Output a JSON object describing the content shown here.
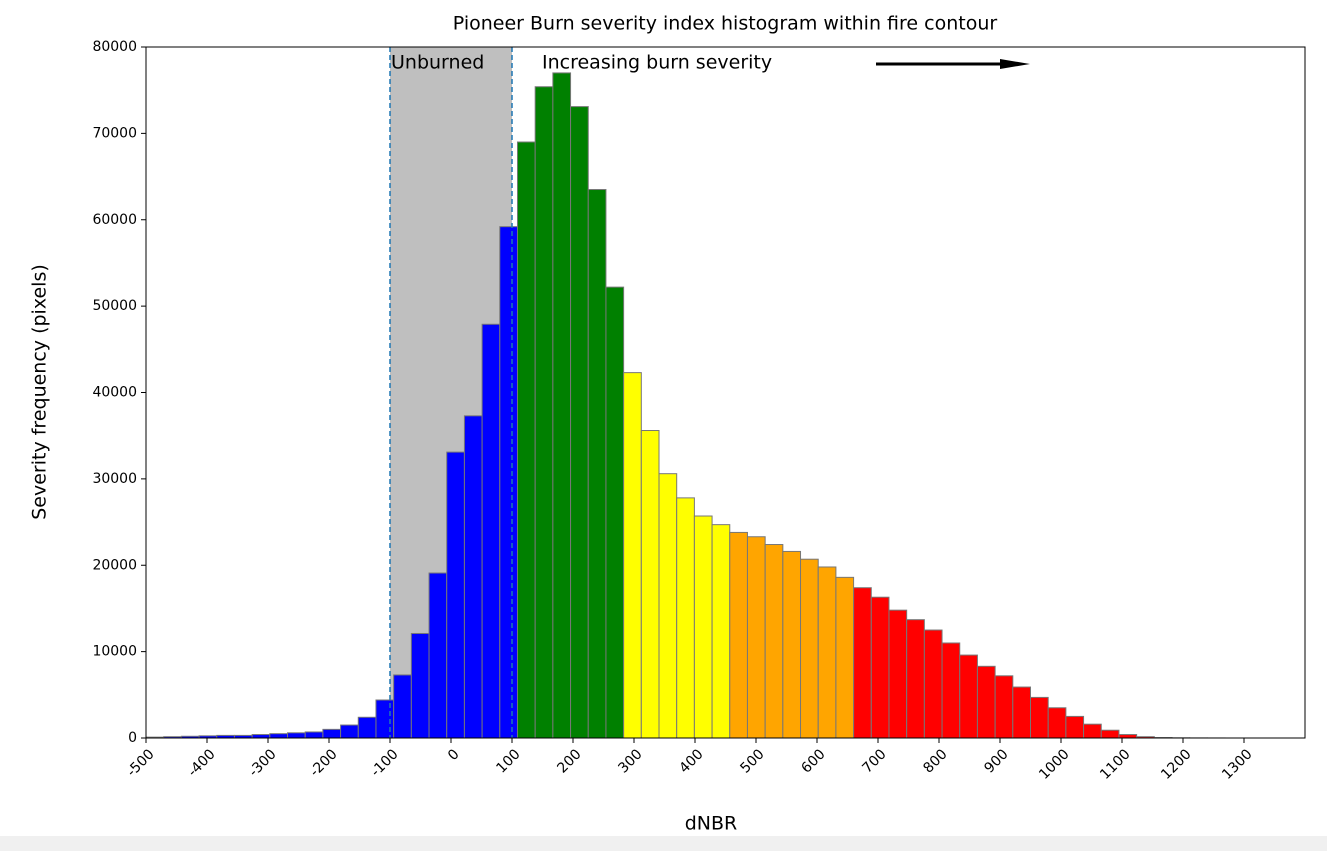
{
  "chart_data": {
    "type": "histogram",
    "title": "Pioneer Burn severity index histogram within fire contour",
    "x_label": "dNBR",
    "y_label": "Severity frequency (pixels)",
    "annotations": [
      "Unburned",
      "Increasing burn severity"
    ],
    "shaded_span": [
      -100,
      100
    ],
    "shaded_color": "#bfbfbf",
    "bins": [
      -500,
      -471,
      -442,
      -413,
      -384,
      -355,
      -326,
      -297,
      -268,
      -239,
      -210,
      -181,
      -152,
      -123,
      -94,
      -65,
      -36,
      -7,
      22,
      51,
      80,
      109,
      138,
      167,
      196,
      225,
      254,
      283,
      312,
      341,
      370,
      399,
      428,
      457,
      486,
      515,
      544,
      573,
      602,
      631,
      660,
      689,
      718,
      747,
      776,
      805,
      834,
      863,
      892,
      921,
      950,
      979,
      1008,
      1037,
      1066,
      1095,
      1124,
      1153,
      1182,
      1211,
      1240,
      1269,
      1298
    ],
    "counts": [
      100,
      150,
      200,
      250,
      300,
      300,
      400,
      500,
      600,
      700,
      1000,
      1500,
      2400,
      4400,
      7300,
      12100,
      19100,
      33100,
      37300,
      47900,
      59200,
      69000,
      75400,
      77000,
      73100,
      63500,
      52200,
      42300,
      35600,
      30600,
      27800,
      25700,
      24700,
      23800,
      23300,
      22400,
      21600,
      20700,
      19800,
      18600,
      17400,
      16300,
      14800,
      13700,
      12500,
      11000,
      9600,
      8300,
      7200,
      5900,
      4700,
      3500,
      2500,
      1600,
      900,
      400,
      150,
      50,
      20,
      10,
      5,
      0
    ],
    "colors": [
      "#0000ff",
      "#0000ff",
      "#0000ff",
      "#0000ff",
      "#0000ff",
      "#0000ff",
      "#0000ff",
      "#0000ff",
      "#0000ff",
      "#0000ff",
      "#0000ff",
      "#0000ff",
      "#0000ff",
      "#0000ff",
      "#0000ff",
      "#0000ff",
      "#0000ff",
      "#0000ff",
      "#0000ff",
      "#0000ff",
      "#0000ff",
      "#008000",
      "#008000",
      "#008000",
      "#008000",
      "#008000",
      "#008000",
      "#ffff00",
      "#ffff00",
      "#ffff00",
      "#ffff00",
      "#ffff00",
      "#ffff00",
      "#ffa500",
      "#ffa500",
      "#ffa500",
      "#ffa500",
      "#ffa500",
      "#ffa500",
      "#ffa500",
      "#ff0000",
      "#ff0000",
      "#ff0000",
      "#ff0000",
      "#ff0000",
      "#ff0000",
      "#ff0000",
      "#ff0000",
      "#ff0000",
      "#ff0000",
      "#ff0000",
      "#ff0000",
      "#ff0000",
      "#ff0000",
      "#ff0000",
      "#ff0000",
      "#ff0000",
      "#ff0000",
      "#ff0000",
      "#ff0000",
      "#ff0000",
      "#ff0000"
    ],
    "xlim": [
      -500,
      1400
    ],
    "ylim": [
      0,
      80000
    ],
    "xticks": [
      -500,
      -400,
      -300,
      -200,
      -100,
      0,
      100,
      200,
      300,
      400,
      500,
      600,
      700,
      800,
      900,
      1000,
      1100,
      1200,
      1300
    ],
    "yticks": [
      0,
      10000,
      20000,
      30000,
      40000,
      50000,
      60000,
      70000,
      80000
    ]
  }
}
